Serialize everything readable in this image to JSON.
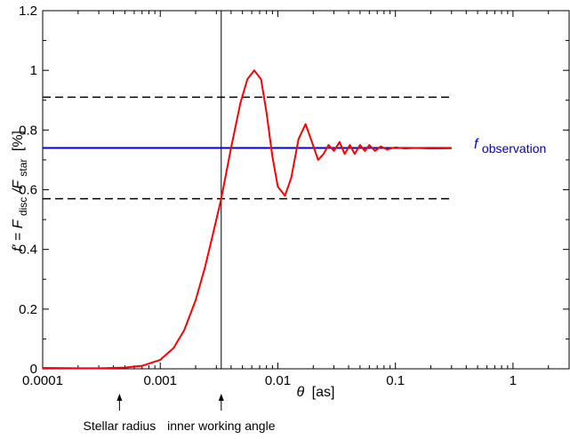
{
  "chart_data": {
    "type": "line",
    "xscale": "log",
    "xlim": [
      0.0001,
      3
    ],
    "ylim": [
      0,
      1.2
    ],
    "grid": false,
    "legend": "none",
    "xlabel": {
      "symbol": "θ",
      "unit": "[as]"
    },
    "ylabel": {
      "prefix": "f' = F",
      "sub1": "disc",
      "mid": "/F",
      "sub2": "star",
      "unit": "[%]"
    },
    "x_ticks": [
      {
        "value": 0.0001,
        "label": "0.0001"
      },
      {
        "value": 0.001,
        "label": "0.001"
      },
      {
        "value": 0.01,
        "label": "0.01"
      },
      {
        "value": 0.1,
        "label": "0.1"
      },
      {
        "value": 1,
        "label": "1"
      }
    ],
    "y_ticks": [
      {
        "value": 0,
        "label": "0"
      },
      {
        "value": 0.2,
        "label": "0.2"
      },
      {
        "value": 0.4,
        "label": "0.4"
      },
      {
        "value": 0.6,
        "label": "0.6"
      },
      {
        "value": 0.8,
        "label": "0.8"
      },
      {
        "value": 1,
        "label": "1"
      },
      {
        "value": 1.2,
        "label": "1.2"
      }
    ],
    "series": [
      {
        "name": "",
        "color": "#ff0000",
        "style": "solid",
        "x": [
          0.0001,
          0.0002,
          0.0003,
          0.0005,
          0.0007,
          0.001,
          0.0013,
          0.0016,
          0.002,
          0.0024,
          0.0028,
          0.0033,
          0.004,
          0.0048,
          0.0055,
          0.0063,
          0.0072,
          0.008,
          0.009,
          0.01,
          0.0115,
          0.013,
          0.015,
          0.0172,
          0.0195,
          0.022,
          0.0245,
          0.027,
          0.03,
          0.0335,
          0.037,
          0.041,
          0.045,
          0.05,
          0.055,
          0.06,
          0.067,
          0.075,
          0.085,
          0.1,
          0.12,
          0.15,
          0.2,
          0.3
        ],
        "values": [
          0.003,
          0.002,
          0.002,
          0.004,
          0.01,
          0.03,
          0.07,
          0.13,
          0.23,
          0.34,
          0.45,
          0.57,
          0.74,
          0.89,
          0.97,
          1.0,
          0.97,
          0.86,
          0.71,
          0.61,
          0.58,
          0.64,
          0.77,
          0.82,
          0.76,
          0.7,
          0.72,
          0.75,
          0.73,
          0.76,
          0.72,
          0.75,
          0.72,
          0.75,
          0.73,
          0.75,
          0.73,
          0.745,
          0.735,
          0.742,
          0.738,
          0.74,
          0.738,
          0.739
        ]
      },
      {
        "name": "",
        "color": "#0000cc",
        "style": "solid",
        "x": [
          0.0001,
          0.3
        ],
        "values": [
          0.74,
          0.74
        ]
      },
      {
        "name": "",
        "color": "#000000",
        "style": "dashed",
        "x": [
          0.0001,
          0.3
        ],
        "values": [
          0.91,
          0.91
        ]
      },
      {
        "name": "",
        "color": "#000000",
        "style": "dashed",
        "x": [
          0.0001,
          0.3
        ],
        "values": [
          0.57,
          0.57
        ]
      }
    ],
    "vline": {
      "x": 0.0033,
      "color": "#000000"
    },
    "series_label": {
      "main": "f",
      "sub": "observation",
      "color": "#0000cc",
      "attached_to_y": 0.74
    },
    "annotations": [
      {
        "x": 0.00045,
        "text": "Stellar radius"
      },
      {
        "x": 0.0033,
        "text": "inner working angle"
      }
    ]
  }
}
